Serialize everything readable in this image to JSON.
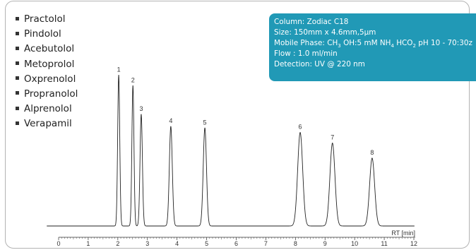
{
  "analytes": [
    "Practolol",
    "Pindolol",
    "Acebutolol",
    "Metoprolol",
    "Oxprenolol",
    "Propranolol",
    "Alprenolol",
    "Verapamil"
  ],
  "conditions": {
    "column": "Column: Zodiac C18",
    "size": "Size: 150mm x 4.6mm,5µm",
    "mobile_phase": {
      "prefix": "Mobile Phase: CH",
      "sub1": "3",
      "mid1": " OH:5 mM NH",
      "sub2": "4",
      "mid2": " HCO",
      "sub3": "2",
      "suffix": " pH 10 - 70:30z"
    },
    "flow": "Flow : 1.0 ml/min",
    "detection": "Detection: UV @ 220 nm"
  },
  "colors": {
    "info_box": "#2199b6",
    "trace": "#222222",
    "frame": "#b3b3b3"
  },
  "chart_data": {
    "type": "line",
    "xlabel": "RT [min]",
    "xlim": [
      0,
      12
    ],
    "xticks": [
      0,
      1,
      2,
      3,
      4,
      5,
      6,
      7,
      8,
      9,
      10,
      11,
      12
    ],
    "ylim": [
      0,
      1.05
    ],
    "peaks": [
      {
        "label": "1",
        "rt": 2.03,
        "height": 1.0,
        "width": 0.035
      },
      {
        "label": "2",
        "rt": 2.51,
        "height": 0.93,
        "width": 0.035
      },
      {
        "label": "3",
        "rt": 2.79,
        "height": 0.74,
        "width": 0.04
      },
      {
        "label": "4",
        "rt": 3.79,
        "height": 0.66,
        "width": 0.05
      },
      {
        "label": "5",
        "rt": 4.94,
        "height": 0.65,
        "width": 0.055
      },
      {
        "label": "6",
        "rt": 8.16,
        "height": 0.62,
        "width": 0.085
      },
      {
        "label": "7",
        "rt": 9.25,
        "height": 0.55,
        "width": 0.085
      },
      {
        "label": "8",
        "rt": 10.59,
        "height": 0.45,
        "width": 0.085
      }
    ]
  }
}
